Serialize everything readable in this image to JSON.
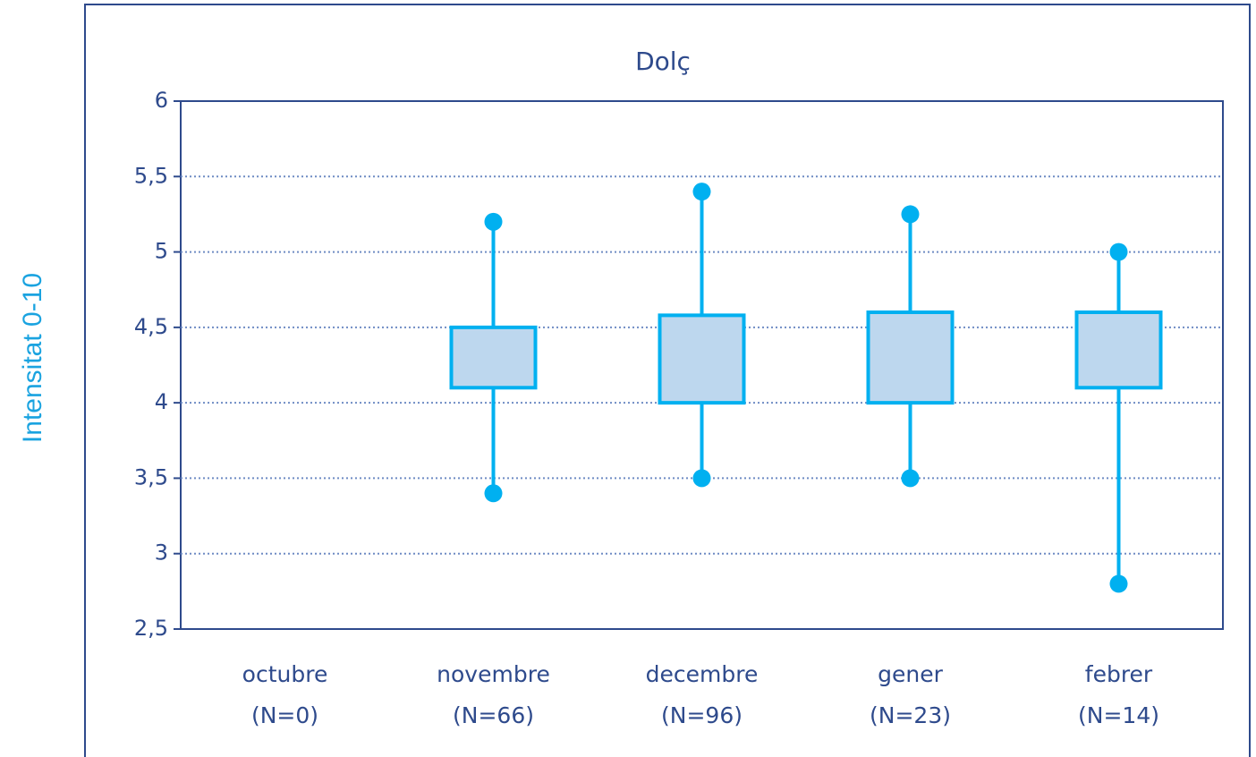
{
  "chart_data": {
    "type": "box",
    "title": "Dolç",
    "ylabel": "Intensitat 0-10",
    "categories": [
      [
        "octubre",
        "(N=0)"
      ],
      [
        "novembre",
        "(N=66)"
      ],
      [
        "decembre",
        "(N=96)"
      ],
      [
        "gener",
        "(N=23)"
      ],
      [
        "febrer",
        "(N=14)"
      ]
    ],
    "min": [
      null,
      3.4,
      3.5,
      3.5,
      2.8
    ],
    "q1": [
      null,
      4.1,
      4.0,
      4.0,
      4.1
    ],
    "q3": [
      null,
      4.5,
      4.58,
      4.6,
      4.6
    ],
    "max": [
      null,
      5.2,
      5.4,
      5.25,
      5.0
    ],
    "color": "#00b0f0",
    "box_fill": "#bdd7ee",
    "ylim": [
      2.5,
      6
    ],
    "yticks": [
      {
        "value": 2.5,
        "label": "2,5"
      },
      3,
      {
        "value": 3.5,
        "label": "3,5"
      },
      4,
      {
        "value": 4.5,
        "label": "4,5"
      },
      5,
      {
        "value": 5.5,
        "label": "5,5"
      },
      6
    ],
    "grid": true
  }
}
